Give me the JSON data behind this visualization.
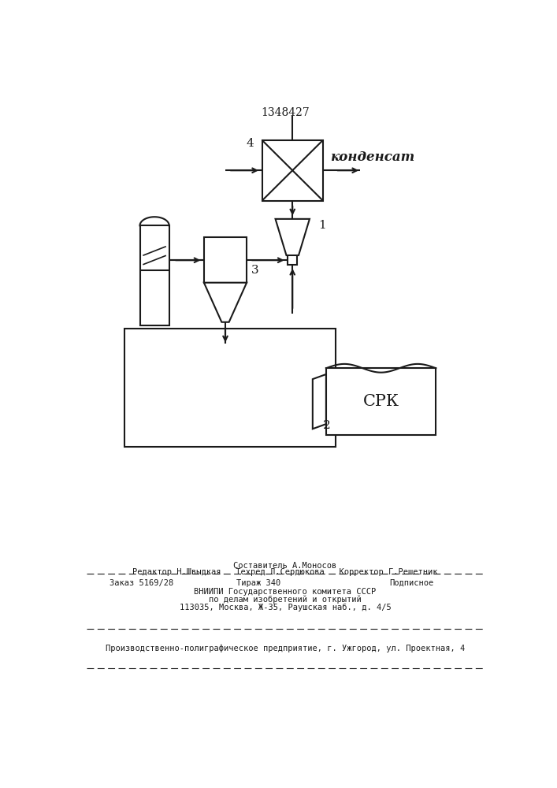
{
  "title": "1348427",
  "bg_color": "#ffffff",
  "line_color": "#1a1a1a",
  "label_kondensат": "конденсат",
  "label_srk": "СРК",
  "label_1": "1",
  "label_2": "2",
  "label_3": "3",
  "label_4": "4",
  "footer_line1": "Составитель А.Моносов",
  "footer_col1": "Редактор Н.Швыдкая",
  "footer_col2": "Техред Л.Сердюкова",
  "footer_col3": "Корректор Г.Решетник",
  "footer_order": "Заказ 5169/28",
  "footer_tirazh": "Тираж 340",
  "footer_podp": "Подписное",
  "footer_line4": "ВНИИПИ Государственного комитета СССР",
  "footer_line5": "по делам изобретений и открытий",
  "footer_line6": "113035, Москва, Ж-35, Раушская наб., д. 4/5",
  "footer_line7": "Производственно-полиграфическое предприятие, г. Ужгород, ул. Проектная, 4"
}
